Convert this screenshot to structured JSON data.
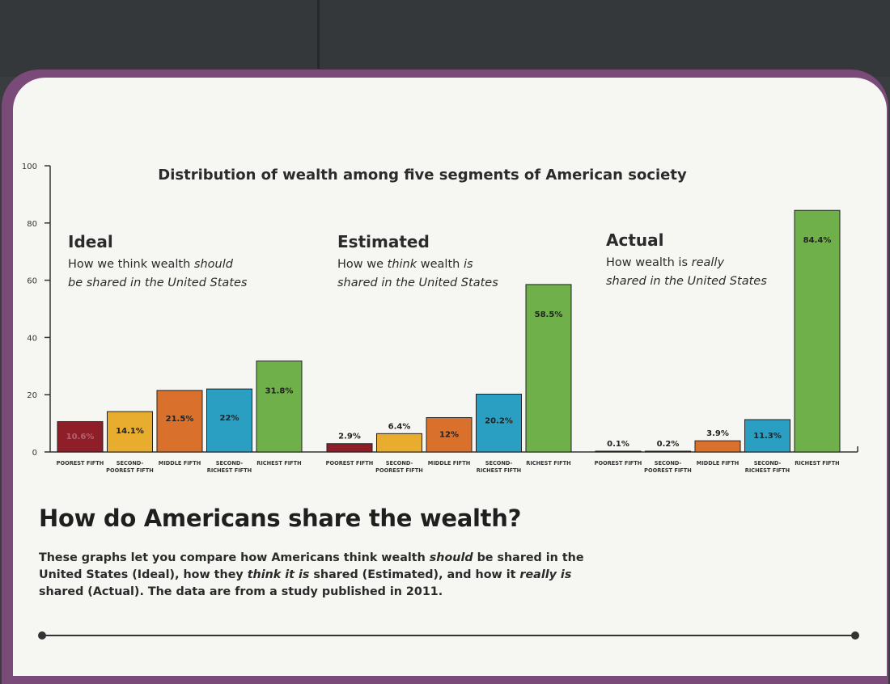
{
  "colors": {
    "poorest": "#8e1f28",
    "second_poorest": "#e8ac2e",
    "middle": "#d9712c",
    "second_richest": "#2b9fc1",
    "richest": "#6fb04a"
  },
  "chart_data": {
    "type": "bar",
    "title": "Distribution of wealth among five segments of American society",
    "ylim": [
      0,
      100
    ],
    "yticks": [
      "0",
      "20",
      "40",
      "60",
      "80",
      "100"
    ],
    "categories": [
      "POOREST FIFTH",
      "SECOND-POOREST FIFTH",
      "MIDDLE FIFTH",
      "SECOND-RICHEST FIFTH",
      "RICHEST FIFTH"
    ],
    "category_lines": [
      [
        "POOREST FIFTH"
      ],
      [
        "SECOND-",
        "POOREST FIFTH"
      ],
      [
        "MIDDLE FIFTH"
      ],
      [
        "SECOND-",
        "RICHEST FIFTH"
      ],
      [
        "RICHEST FIFTH"
      ]
    ],
    "series": [
      {
        "name": "Ideal",
        "subtitle": [
          "How we think wealth ",
          "should",
          "",
          "be shared in the United States"
        ],
        "values": [
          10.6,
          14.1,
          21.5,
          22,
          31.8
        ],
        "labels": [
          "10.6%",
          "14.1%",
          "21.5%",
          "22%",
          "31.8%"
        ]
      },
      {
        "name": "Estimated",
        "subtitle": [
          "How we ",
          "think",
          " wealth ",
          "is",
          "",
          "shared in the United States"
        ],
        "values": [
          2.9,
          6.4,
          12,
          20.2,
          58.5
        ],
        "labels": [
          "2.9%",
          "6.4%",
          "12%",
          "20.2%",
          "58.5%"
        ]
      },
      {
        "name": "Actual",
        "subtitle": [
          "How wealth is ",
          "really",
          "",
          "shared in the United States"
        ],
        "values": [
          0.1,
          0.2,
          3.9,
          11.3,
          84.4
        ],
        "labels": [
          "0.1%",
          "0.2%",
          "3.9%",
          "11.3%",
          "84.4%"
        ]
      }
    ]
  },
  "heading": "How do Americans share the wealth?",
  "description": {
    "p1": "These graphs let you compare how Americans think wealth ",
    "p1_em": "should",
    "p2": " be shared in the United States (Ideal), how they ",
    "p2_em": "think it is",
    "p3": " shared (Estimated), and how it ",
    "p3_em": "really is",
    "p4": " shared (Actual). The data are from a study published in 2011."
  }
}
